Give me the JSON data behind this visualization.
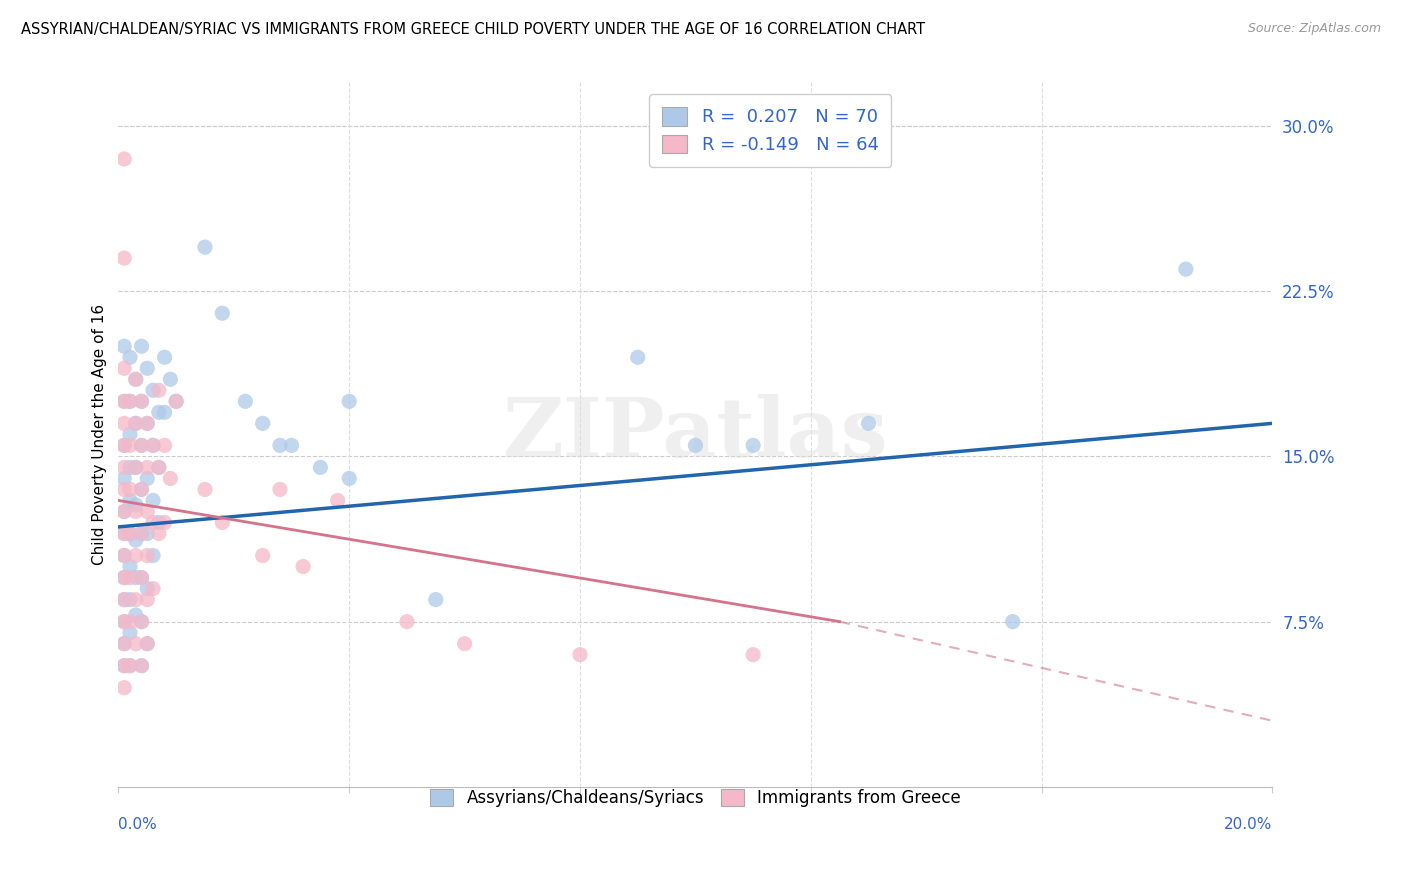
{
  "title": "ASSYRIAN/CHALDEAN/SYRIAC VS IMMIGRANTS FROM GREECE CHILD POVERTY UNDER THE AGE OF 16 CORRELATION CHART",
  "source": "Source: ZipAtlas.com",
  "ylabel": "Child Poverty Under the Age of 16",
  "ytick_labels": [
    "7.5%",
    "15.0%",
    "22.5%",
    "30.0%"
  ],
  "ytick_values": [
    0.075,
    0.15,
    0.225,
    0.3
  ],
  "xmin": 0.0,
  "xmax": 0.2,
  "ymin": 0.0,
  "ymax": 0.32,
  "blue_R": 0.207,
  "blue_N": 70,
  "pink_R": -0.149,
  "pink_N": 64,
  "blue_color": "#aec9e8",
  "pink_color": "#f4b8c8",
  "blue_line_color": "#2166ac",
  "pink_line_color": "#d4748c",
  "watermark_text": "ZIPatlas",
  "legend_label_blue": "Assyrians/Chaldeans/Syriacs",
  "legend_label_pink": "Immigrants from Greece",
  "blue_trend_x": [
    0.0,
    0.2
  ],
  "blue_trend_y": [
    0.118,
    0.165
  ],
  "pink_trend_x": [
    0.0,
    0.125
  ],
  "pink_trend_y": [
    0.13,
    0.075
  ],
  "blue_scatter": [
    [
      0.001,
      0.2
    ],
    [
      0.001,
      0.175
    ],
    [
      0.001,
      0.155
    ],
    [
      0.001,
      0.14
    ],
    [
      0.001,
      0.125
    ],
    [
      0.001,
      0.115
    ],
    [
      0.001,
      0.105
    ],
    [
      0.001,
      0.095
    ],
    [
      0.001,
      0.085
    ],
    [
      0.001,
      0.075
    ],
    [
      0.001,
      0.065
    ],
    [
      0.001,
      0.055
    ],
    [
      0.002,
      0.195
    ],
    [
      0.002,
      0.175
    ],
    [
      0.002,
      0.16
    ],
    [
      0.002,
      0.145
    ],
    [
      0.002,
      0.13
    ],
    [
      0.002,
      0.115
    ],
    [
      0.002,
      0.1
    ],
    [
      0.002,
      0.085
    ],
    [
      0.002,
      0.07
    ],
    [
      0.002,
      0.055
    ],
    [
      0.003,
      0.185
    ],
    [
      0.003,
      0.165
    ],
    [
      0.003,
      0.145
    ],
    [
      0.003,
      0.128
    ],
    [
      0.003,
      0.112
    ],
    [
      0.003,
      0.095
    ],
    [
      0.003,
      0.078
    ],
    [
      0.004,
      0.2
    ],
    [
      0.004,
      0.175
    ],
    [
      0.004,
      0.155
    ],
    [
      0.004,
      0.135
    ],
    [
      0.004,
      0.115
    ],
    [
      0.004,
      0.095
    ],
    [
      0.004,
      0.075
    ],
    [
      0.004,
      0.055
    ],
    [
      0.005,
      0.19
    ],
    [
      0.005,
      0.165
    ],
    [
      0.005,
      0.14
    ],
    [
      0.005,
      0.115
    ],
    [
      0.005,
      0.09
    ],
    [
      0.005,
      0.065
    ],
    [
      0.006,
      0.18
    ],
    [
      0.006,
      0.155
    ],
    [
      0.006,
      0.13
    ],
    [
      0.006,
      0.105
    ],
    [
      0.007,
      0.17
    ],
    [
      0.007,
      0.145
    ],
    [
      0.007,
      0.12
    ],
    [
      0.008,
      0.195
    ],
    [
      0.008,
      0.17
    ],
    [
      0.009,
      0.185
    ],
    [
      0.01,
      0.175
    ],
    [
      0.015,
      0.245
    ],
    [
      0.018,
      0.215
    ],
    [
      0.022,
      0.175
    ],
    [
      0.025,
      0.165
    ],
    [
      0.028,
      0.155
    ],
    [
      0.03,
      0.155
    ],
    [
      0.035,
      0.145
    ],
    [
      0.04,
      0.175
    ],
    [
      0.04,
      0.14
    ],
    [
      0.055,
      0.085
    ],
    [
      0.09,
      0.195
    ],
    [
      0.1,
      0.155
    ],
    [
      0.11,
      0.155
    ],
    [
      0.13,
      0.165
    ],
    [
      0.155,
      0.075
    ],
    [
      0.185,
      0.235
    ]
  ],
  "pink_scatter": [
    [
      0.001,
      0.285
    ],
    [
      0.001,
      0.24
    ],
    [
      0.001,
      0.19
    ],
    [
      0.001,
      0.175
    ],
    [
      0.001,
      0.165
    ],
    [
      0.001,
      0.155
    ],
    [
      0.001,
      0.145
    ],
    [
      0.001,
      0.135
    ],
    [
      0.001,
      0.125
    ],
    [
      0.001,
      0.115
    ],
    [
      0.001,
      0.105
    ],
    [
      0.001,
      0.095
    ],
    [
      0.001,
      0.085
    ],
    [
      0.001,
      0.075
    ],
    [
      0.001,
      0.065
    ],
    [
      0.001,
      0.055
    ],
    [
      0.001,
      0.045
    ],
    [
      0.002,
      0.175
    ],
    [
      0.002,
      0.155
    ],
    [
      0.002,
      0.135
    ],
    [
      0.002,
      0.115
    ],
    [
      0.002,
      0.095
    ],
    [
      0.002,
      0.075
    ],
    [
      0.002,
      0.055
    ],
    [
      0.003,
      0.185
    ],
    [
      0.003,
      0.165
    ],
    [
      0.003,
      0.145
    ],
    [
      0.003,
      0.125
    ],
    [
      0.003,
      0.105
    ],
    [
      0.003,
      0.085
    ],
    [
      0.003,
      0.065
    ],
    [
      0.004,
      0.175
    ],
    [
      0.004,
      0.155
    ],
    [
      0.004,
      0.135
    ],
    [
      0.004,
      0.115
    ],
    [
      0.004,
      0.095
    ],
    [
      0.004,
      0.075
    ],
    [
      0.004,
      0.055
    ],
    [
      0.005,
      0.165
    ],
    [
      0.005,
      0.145
    ],
    [
      0.005,
      0.125
    ],
    [
      0.005,
      0.105
    ],
    [
      0.005,
      0.085
    ],
    [
      0.005,
      0.065
    ],
    [
      0.006,
      0.155
    ],
    [
      0.006,
      0.12
    ],
    [
      0.006,
      0.09
    ],
    [
      0.007,
      0.18
    ],
    [
      0.007,
      0.145
    ],
    [
      0.007,
      0.115
    ],
    [
      0.008,
      0.155
    ],
    [
      0.008,
      0.12
    ],
    [
      0.009,
      0.14
    ],
    [
      0.01,
      0.175
    ],
    [
      0.015,
      0.135
    ],
    [
      0.018,
      0.12
    ],
    [
      0.025,
      0.105
    ],
    [
      0.028,
      0.135
    ],
    [
      0.032,
      0.1
    ],
    [
      0.038,
      0.13
    ],
    [
      0.05,
      0.075
    ],
    [
      0.06,
      0.065
    ],
    [
      0.08,
      0.06
    ],
    [
      0.11,
      0.06
    ]
  ]
}
